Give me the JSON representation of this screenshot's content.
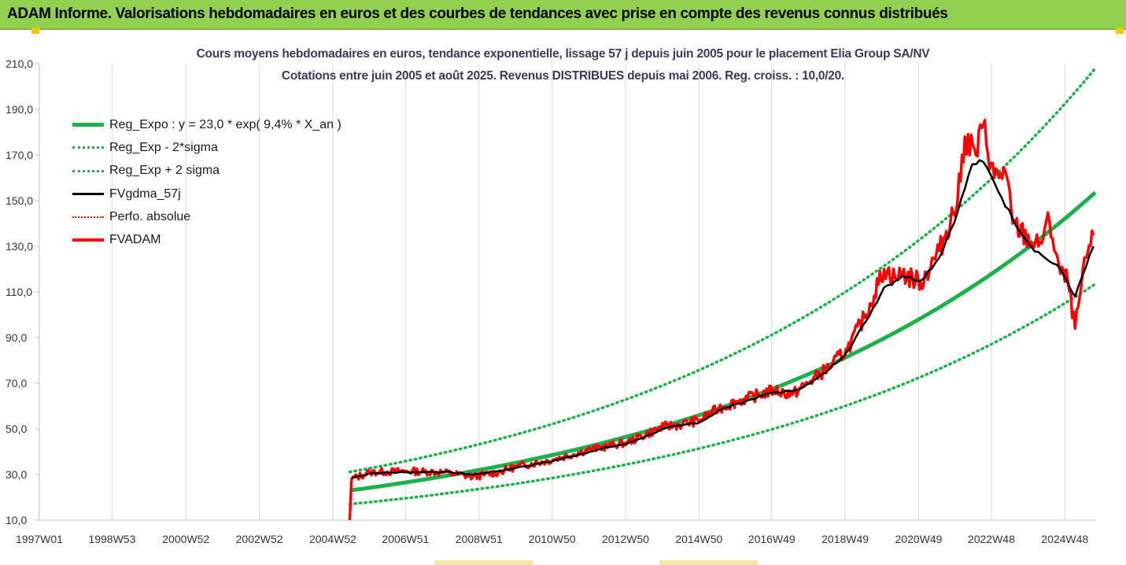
{
  "banner": {
    "title": "ADAM Informe. Valorisations hebdomadaires en euros et des courbes de tendances avec prise en compte des revenus connus distribués",
    "color": "#92d050"
  },
  "chart_data": {
    "type": "line",
    "title": "Cours moyens hebdomadaires en euros, tendance exponentielle, lissage 57 j depuis juin 2005 pour le placement Elia Group SA/NV",
    "subtitle": "Cotations entre juin 2005 et août 2025. Revenus DISTRIBUES depuis mai 2006. Reg. croiss. : 10,0/20.",
    "xlabel": "",
    "ylabel": "",
    "xlim": [
      1997.0,
      2025.75
    ],
    "ylim": [
      10,
      210
    ],
    "yticks": [
      "10,0",
      "30,0",
      "50,0",
      "70,0",
      "90,0",
      "110,0",
      "130,0",
      "150,0",
      "170,0",
      "190,0",
      "210,0"
    ],
    "xticks": [
      {
        "x": 1997.0,
        "label": "1997W01"
      },
      {
        "x": 1998.98,
        "label": "1998W53"
      },
      {
        "x": 2000.99,
        "label": "2000W52"
      },
      {
        "x": 2002.99,
        "label": "2002W52"
      },
      {
        "x": 2004.99,
        "label": "2004W52"
      },
      {
        "x": 2006.97,
        "label": "2006W51"
      },
      {
        "x": 2008.97,
        "label": "2008W51"
      },
      {
        "x": 2010.96,
        "label": "2010W50"
      },
      {
        "x": 2012.96,
        "label": "2012W50"
      },
      {
        "x": 2014.96,
        "label": "2014W50"
      },
      {
        "x": 2016.94,
        "label": "2016W49"
      },
      {
        "x": 2018.94,
        "label": "2018W49"
      },
      {
        "x": 2020.94,
        "label": "2020W49"
      },
      {
        "x": 2022.92,
        "label": "2022W48"
      },
      {
        "x": 2024.92,
        "label": "2024W48"
      }
    ],
    "grid": "vertical",
    "legend_position": "top-left",
    "series": [
      {
        "name": "Reg_Expo : y = 23,0 * exp( 9,4% *  X_an )",
        "color": "#1db14b",
        "style": "solid",
        "x": [
          2005.45,
          2007,
          2009,
          2011,
          2013,
          2015,
          2017,
          2019,
          2021,
          2023,
          2025.75
        ],
        "y": [
          23.0,
          26.4,
          31.9,
          38.4,
          46.3,
          55.8,
          67.2,
          81.0,
          97.6,
          117.6,
          153.6
        ]
      },
      {
        "name": "Reg_Exp - 2*sigma",
        "color": "#1db14b",
        "style": "dotted",
        "x": [
          2005.45,
          2007,
          2009,
          2011,
          2013,
          2015,
          2017,
          2019,
          2021,
          2023,
          2025.75
        ],
        "y": [
          17.0,
          19.5,
          23.6,
          28.4,
          34.2,
          41.2,
          49.7,
          59.8,
          72.1,
          86.9,
          113.5
        ]
      },
      {
        "name": "Reg_Exp + 2 sigma",
        "color": "#1db14b",
        "style": "dotted",
        "x": [
          2005.45,
          2007,
          2009,
          2011,
          2013,
          2015,
          2017,
          2019,
          2021,
          2023,
          2025.75
        ],
        "y": [
          31.1,
          35.8,
          43.2,
          52.0,
          62.6,
          75.5,
          91.0,
          109.6,
          132.1,
          159.2,
          208.0
        ]
      },
      {
        "name": "FVgdma_57j",
        "color": "#000000",
        "style": "solid",
        "x": [
          2005.5,
          2006,
          2007,
          2008,
          2008.8,
          2009.5,
          2010,
          2011,
          2012,
          2012.5,
          2013,
          2014,
          2014.5,
          2015,
          2015.5,
          2016,
          2017,
          2017.5,
          2018,
          2018.5,
          2019,
          2019.5,
          2020,
          2020.5,
          2021,
          2021.5,
          2022,
          2022.4,
          2022.7,
          2023,
          2023.5,
          2024,
          2024.3,
          2024.8,
          2025.2,
          2025.7
        ],
        "y": [
          28.5,
          30.5,
          31.0,
          31.2,
          30.0,
          31.5,
          33.0,
          36.0,
          40.0,
          42.0,
          43.5,
          50.0,
          51.5,
          53.0,
          58.0,
          61.0,
          66.0,
          66.5,
          70.0,
          76.0,
          84.0,
          97.0,
          112.0,
          117.0,
          115.0,
          125.0,
          145.0,
          166.0,
          167.0,
          158.0,
          142.0,
          130.0,
          126.0,
          120.0,
          108.0,
          130.0
        ]
      },
      {
        "name": "Perfo. absolue",
        "color": "#ff0000",
        "style": "dotted",
        "x": [
          2005.45,
          2005.5,
          2006,
          2007,
          2008,
          2008.8,
          2009.5,
          2010,
          2011,
          2012,
          2012.5,
          2013,
          2014,
          2014.5,
          2015,
          2015.5,
          2016,
          2017,
          2017.5,
          2018,
          2018.5,
          2019,
          2019.5,
          2020,
          2020.3,
          2020.5,
          2021,
          2021.5,
          2022,
          2022.2,
          2022.5,
          2022.7,
          2023,
          2023.3,
          2023.5,
          2024,
          2024.2,
          2024.5,
          2024.8,
          2025.0,
          2025.2,
          2025.5,
          2025.7
        ],
        "y": [
          26.0,
          28.0,
          31.0,
          31.5,
          31.0,
          29.0,
          31.0,
          33.5,
          36.5,
          41.0,
          42.5,
          44.0,
          51.0,
          52.0,
          54.0,
          59.0,
          62.0,
          67.0,
          65.0,
          71.0,
          77.0,
          85.0,
          100.0,
          120.0,
          116.0,
          118.0,
          114.0,
          128.0,
          150.0,
          178.0,
          170.0,
          183.0,
          160.0,
          163.0,
          140.0,
          132.0,
          130.0,
          141.0,
          118.0,
          115.0,
          94.0,
          125.0,
          135.0
        ]
      },
      {
        "name": "FVADAM",
        "color": "#ff0000",
        "style": "solid",
        "x": [
          2005.45,
          2005.5,
          2006,
          2007,
          2008,
          2008.8,
          2009.5,
          2010,
          2011,
          2012,
          2012.5,
          2013,
          2014,
          2014.5,
          2015,
          2015.5,
          2016,
          2017,
          2017.5,
          2018,
          2018.5,
          2019,
          2019.5,
          2020,
          2020.3,
          2020.5,
          2021,
          2021.5,
          2022,
          2022.2,
          2022.5,
          2022.7,
          2023,
          2023.3,
          2023.5,
          2024,
          2024.2,
          2024.5,
          2024.8,
          2025.0,
          2025.2,
          2025.5,
          2025.7
        ],
        "y": [
          10.0,
          28.0,
          31.0,
          31.5,
          31.0,
          29.0,
          31.0,
          33.5,
          36.5,
          41.0,
          42.5,
          44.0,
          51.0,
          52.0,
          54.0,
          59.0,
          62.0,
          67.0,
          65.0,
          71.0,
          77.0,
          85.0,
          100.0,
          120.0,
          116.0,
          118.0,
          114.0,
          128.0,
          150.0,
          178.0,
          170.0,
          183.0,
          160.0,
          163.0,
          140.0,
          132.0,
          130.0,
          141.0,
          118.0,
          115.0,
          94.0,
          125.0,
          135.0
        ]
      }
    ]
  }
}
